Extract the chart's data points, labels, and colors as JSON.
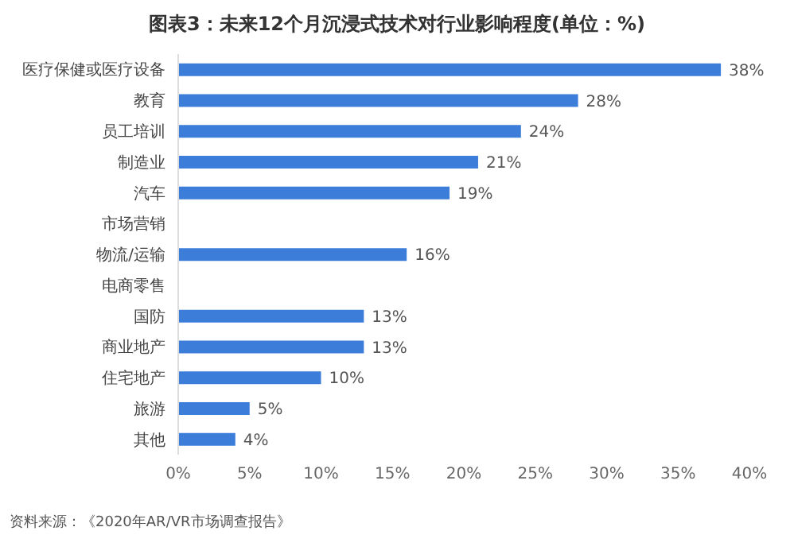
{
  "chart_data": {
    "type": "bar",
    "orientation": "horizontal",
    "title": "图表3：未来12个月沉浸式技术对行业影响程度(单位：%)",
    "categories": [
      "医疗保健或医疗设备",
      "教育",
      "员工培训",
      "制造业",
      "汽车",
      "市场营销",
      "物流/运输",
      "电商零售",
      "国防",
      "商业地产",
      "住宅地产",
      "旅游",
      "其他"
    ],
    "values": [
      38,
      28,
      24,
      21,
      19,
      null,
      16,
      null,
      13,
      13,
      10,
      5,
      4
    ],
    "value_labels": [
      "38%",
      "28%",
      "24%",
      "21%",
      "19%",
      null,
      "16%",
      null,
      "13%",
      "13%",
      "10%",
      "5%",
      "4%"
    ],
    "color": "#3c7dd9",
    "xlim": [
      0,
      40
    ],
    "xticks": [
      {
        "value": 0,
        "label": "0%"
      },
      {
        "value": 5,
        "label": "5%"
      },
      {
        "value": 10,
        "label": "10%"
      },
      {
        "value": 15,
        "label": "15%"
      },
      {
        "value": 20,
        "label": "20%"
      },
      {
        "value": 25,
        "label": "25%"
      },
      {
        "value": 30,
        "label": "30%"
      },
      {
        "value": 35,
        "label": "35%"
      },
      {
        "value": 40,
        "label": "40%"
      }
    ],
    "grid": false,
    "annotations": [
      "资料来源：《2020年AR/VR市场调查报告》"
    ]
  }
}
